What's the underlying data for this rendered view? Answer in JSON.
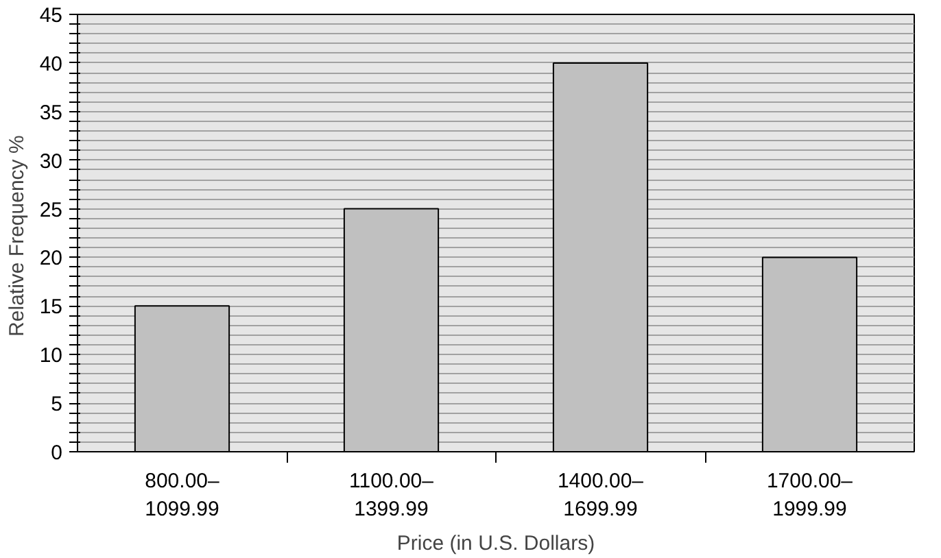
{
  "chart_data": {
    "type": "bar",
    "xlabel": "Price (in U.S. Dollars)",
    "ylabel": "Relative Frequency  %",
    "categories": [
      "800.00–\n1099.99",
      "1100.00–\n1399.99",
      "1400.00–\n1699.99",
      "1700.00–\n1999.99"
    ],
    "values": [
      15,
      25,
      40,
      20
    ],
    "color": "#c0c0c0",
    "ylim": [
      0,
      45
    ],
    "yticks": [
      0,
      {
        "value": 1,
        "label": null
      },
      {
        "value": 2,
        "label": null
      },
      {
        "value": 3,
        "label": null
      },
      {
        "value": 4,
        "label": null
      },
      5,
      {
        "value": 6,
        "label": null
      },
      {
        "value": 7,
        "label": null
      },
      {
        "value": 8,
        "label": null
      },
      {
        "value": 9,
        "label": null
      },
      10,
      {
        "value": 11,
        "label": null
      },
      {
        "value": 12,
        "label": null
      },
      {
        "value": 13,
        "label": null
      },
      {
        "value": 14,
        "label": null
      },
      15,
      {
        "value": 16,
        "label": null
      },
      {
        "value": 17,
        "label": null
      },
      {
        "value": 18,
        "label": null
      },
      {
        "value": 19,
        "label": null
      },
      20,
      {
        "value": 21,
        "label": null
      },
      {
        "value": 22,
        "label": null
      },
      {
        "value": 23,
        "label": null
      },
      {
        "value": 24,
        "label": null
      },
      25,
      {
        "value": 26,
        "label": null
      },
      {
        "value": 27,
        "label": null
      },
      {
        "value": 28,
        "label": null
      },
      {
        "value": 29,
        "label": null
      },
      30,
      {
        "value": 31,
        "label": null
      },
      {
        "value": 32,
        "label": null
      },
      {
        "value": 33,
        "label": null
      },
      {
        "value": 34,
        "label": null
      },
      35,
      {
        "value": 36,
        "label": null
      },
      {
        "value": 37,
        "label": null
      },
      {
        "value": 38,
        "label": null
      },
      {
        "value": 39,
        "label": null
      },
      40,
      {
        "value": 41,
        "label": null
      },
      {
        "value": 42,
        "label": null
      },
      {
        "value": 43,
        "label": null
      },
      {
        "value": 44,
        "label": null
      },
      45
    ],
    "grid": "y"
  }
}
